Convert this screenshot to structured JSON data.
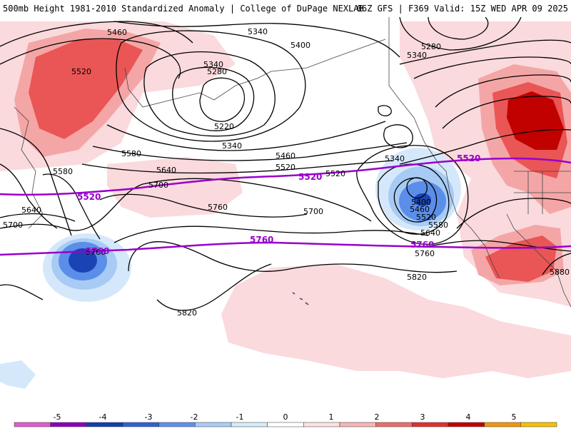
{
  "header": {
    "left": "500mb Height 1981-2010 Standardized Anomaly | College of DuPage NEXLAB",
    "right": "06Z GFS | F369 Valid: 15Z WED APR 09 2025"
  },
  "legend": {
    "ticks": [
      "-5",
      "-4",
      "-3",
      "-2",
      "-1",
      "0",
      "1",
      "2",
      "3",
      "4",
      "5"
    ],
    "colors": [
      "#e060c8",
      "#8800c0",
      "#1040b0",
      "#2e62d6",
      "#5d91ec",
      "#a8cdf6",
      "#d8ecfb",
      "#ffffff",
      "#fde2e2",
      "#f7b6b6",
      "#ee6c6c",
      "#e03030",
      "#c00000",
      "#f3960c",
      "#f7c000"
    ]
  },
  "contours": {
    "height_labels": [
      "5460",
      "5340",
      "5400",
      "5280",
      "5340",
      "5520",
      "5340",
      "5280",
      "5220",
      "5340",
      "5580",
      "5460",
      "5640",
      "5520",
      "5580",
      "5520",
      "5700",
      "5340",
      "5640",
      "5400",
      "5460",
      "5520",
      "5580",
      "5640",
      "5700",
      "5760",
      "5700",
      "5760",
      "5820",
      "5760",
      "5820",
      "5880"
    ],
    "standard_lines": [
      "5520",
      "5520",
      "5520",
      "5760",
      "5760",
      "5760"
    ]
  },
  "colors": {
    "standard_line": "#9900cc",
    "contour": "#000000",
    "coast": "#444444"
  }
}
